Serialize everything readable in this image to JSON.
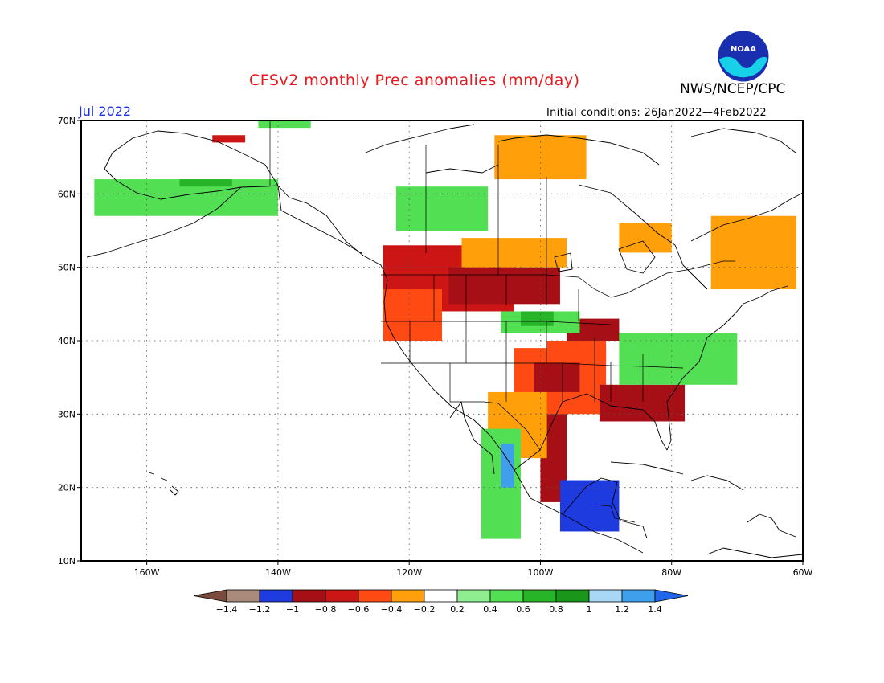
{
  "title": "CFSv2 monthly Prec anomalies (mm/day)",
  "org": "NWS/NCEP/CPC",
  "logo_text": "NOAA",
  "month": "Jul 2022",
  "initial_conditions": "Initial conditions: 26Jan2022—4Feb2022",
  "map": {
    "projection": "lat-lon",
    "lon_range": [
      -170,
      -60
    ],
    "lat_range": [
      10,
      70
    ],
    "lat_labels": [
      {
        "lat": 70,
        "label": "70N"
      },
      {
        "lat": 60,
        "label": "60N"
      },
      {
        "lat": 50,
        "label": "50N"
      },
      {
        "lat": 40,
        "label": "40N"
      },
      {
        "lat": 30,
        "label": "30N"
      },
      {
        "lat": 20,
        "label": "20N"
      },
      {
        "lat": 10,
        "label": "10N"
      }
    ],
    "lon_labels": [
      {
        "lon": -160,
        "label": "160W"
      },
      {
        "lon": -140,
        "label": "140W"
      },
      {
        "lon": -120,
        "label": "120W"
      },
      {
        "lon": -100,
        "label": "100W"
      },
      {
        "lon": -80,
        "label": "80W"
      },
      {
        "lon": -60,
        "label": "60W"
      }
    ],
    "grid": true
  },
  "colorbar": {
    "labels": [
      "−1.4",
      "−1.2",
      "−1",
      "−0.8",
      "−0.6",
      "−0.4",
      "−0.2",
      "0.2",
      "0.4",
      "0.6",
      "0.8",
      "1",
      "1.2",
      "1.4"
    ],
    "colors": [
      "#7a4a3c",
      "#aa8a7a",
      "#1e3be0",
      "#a50f15",
      "#cc1616",
      "#ff4a14",
      "#ff9f0a",
      "#ffffff",
      "#90ee90",
      "#53df53",
      "#28b428",
      "#1a961a",
      "#a8d8f5",
      "#3f9fea",
      "#1f66ea"
    ]
  },
  "chart_data": {
    "type": "heatmap",
    "title": "CFSv2 monthly Prec anomalies (mm/day)",
    "variable": "precipitation anomaly",
    "units": "mm/day",
    "valid_month": "Jul 2022",
    "initial_conditions": "26Jan2022—4Feb2022",
    "lon_range": [
      -170,
      -60
    ],
    "lat_range": [
      10,
      70
    ],
    "anomaly_regions": [
      {
        "lon": [
          -124,
          -104
        ],
        "lat": [
          44,
          53
        ],
        "value": -0.7
      },
      {
        "lon": [
          -114,
          -97
        ],
        "lat": [
          45,
          50
        ],
        "value": -0.9
      },
      {
        "lon": [
          -124,
          -115
        ],
        "lat": [
          40,
          47
        ],
        "value": -0.5
      },
      {
        "lon": [
          -112,
          -96
        ],
        "lat": [
          50,
          54
        ],
        "value": -0.4
      },
      {
        "lon": [
          -104,
          -90
        ],
        "lat": [
          30,
          39
        ],
        "value": -0.5
      },
      {
        "lon": [
          -101,
          -94
        ],
        "lat": [
          33,
          37
        ],
        "value": -0.9
      },
      {
        "lon": [
          -91,
          -78
        ],
        "lat": [
          29,
          34
        ],
        "value": -0.9
      },
      {
        "lon": [
          -100,
          -96
        ],
        "lat": [
          18,
          30
        ],
        "value": -1.0
      },
      {
        "lon": [
          -97,
          -88
        ],
        "lat": [
          14,
          21
        ],
        "value": -1.1
      },
      {
        "lon": [
          -108,
          -99
        ],
        "lat": [
          24,
          33
        ],
        "value": -0.4
      },
      {
        "lon": [
          -96,
          -88
        ],
        "lat": [
          40,
          43
        ],
        "value": -0.9
      },
      {
        "lon": [
          -99,
          -90
        ],
        "lat": [
          37,
          40
        ],
        "value": -0.5
      },
      {
        "lon": [
          -88,
          -80
        ],
        "lat": [
          52,
          56
        ],
        "value": -0.4
      },
      {
        "lon": [
          -107,
          -93
        ],
        "lat": [
          62,
          68
        ],
        "value": -0.4
      },
      {
        "lon": [
          -74,
          -61
        ],
        "lat": [
          47,
          57
        ],
        "value": -0.4
      },
      {
        "lon": [
          -122,
          -108
        ],
        "lat": [
          55,
          61
        ],
        "value": 0.4
      },
      {
        "lon": [
          -106,
          -94
        ],
        "lat": [
          41,
          44
        ],
        "value": 0.4
      },
      {
        "lon": [
          -103,
          -98
        ],
        "lat": [
          42,
          44
        ],
        "value": 0.6
      },
      {
        "lon": [
          -88,
          -70
        ],
        "lat": [
          34,
          41
        ],
        "value": 0.4
      },
      {
        "lon": [
          -109,
          -103
        ],
        "lat": [
          13,
          28
        ],
        "value": 0.5
      },
      {
        "lon": [
          -106,
          -104
        ],
        "lat": [
          20,
          26
        ],
        "value": 1.2
      },
      {
        "lon": [
          -168,
          -140
        ],
        "lat": [
          57,
          62
        ],
        "value": 0.5
      },
      {
        "lon": [
          -155,
          -147
        ],
        "lat": [
          61,
          62
        ],
        "value": 0.6
      },
      {
        "lon": [
          -143,
          -135
        ],
        "lat": [
          69,
          70
        ],
        "value": 0.4
      },
      {
        "lon": [
          -150,
          -145
        ],
        "lat": [
          67,
          68
        ],
        "value": -0.7
      }
    ]
  }
}
